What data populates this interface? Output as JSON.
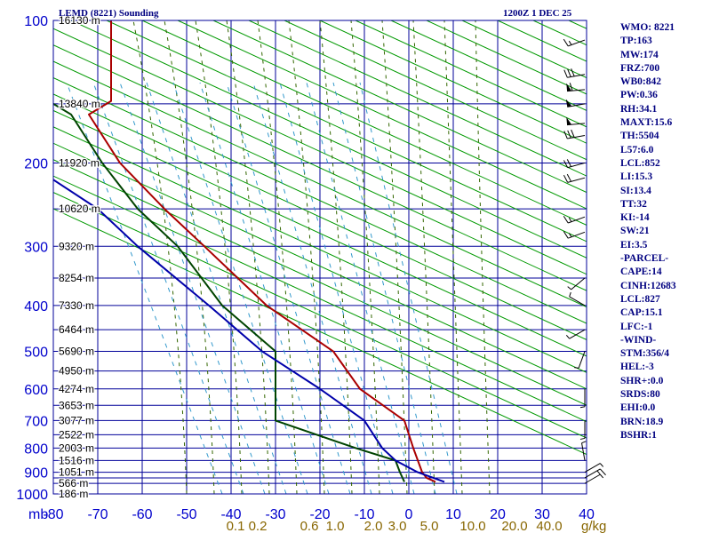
{
  "header": {
    "title": "LEMD (8221) Sounding",
    "date": "1200Z  1 DEC 25"
  },
  "indices": [
    "WMO: 8221",
    "TP:163",
    "MW:174",
    "FRZ:700",
    "WB0:842",
    "PW:0.36",
    "RH:34.1",
    "MAXT:15.6",
    "TH:5504",
    "L57:6.0",
    "LCL:852",
    "LI:15.3",
    "SI:13.4",
    "TT:32",
    "KI:-14",
    "SW:21",
    "EI:3.5",
    "-PARCEL-",
    "CAPE:14",
    "CINH:12683",
    "LCL:827",
    "CAP:15.1",
    "LFC:-1",
    "-WIND-",
    "STM:356/4",
    "HEL:-3",
    "SHR+:0.0",
    "SRDS:80",
    "EHI:0.0",
    "BRN:18.9",
    "BSHR:1"
  ],
  "colors": {
    "grid": "#000099",
    "axis_labels": "#0000cc",
    "temperature": "#aa0000",
    "dewpoint": "#004400",
    "parcel": "#0000aa",
    "dry_adiabats": "#009900",
    "moist_adiabats": "#336600",
    "mixing_ratio": "#3399cc",
    "mixing_labels": "#886600",
    "heights": "#000000",
    "indices_text": "#000080",
    "wind_barbs": "#000000"
  },
  "chart_data": {
    "type": "line",
    "diagram": "skew-T log-p",
    "pressure_unit": "mb",
    "x_tick_labels": [
      "-80",
      "-70",
      "-60",
      "-50",
      "-40",
      "-30",
      "-20",
      "-10",
      "0",
      "10",
      "20",
      "30",
      "40"
    ],
    "xlim": [
      -80,
      40
    ],
    "y_tick_labels": [
      "100",
      "200",
      "300",
      "400",
      "500",
      "600",
      "700",
      "800",
      "900",
      "1000"
    ],
    "ylim": [
      1000,
      100
    ],
    "pressure_levels": [
      100,
      150,
      200,
      250,
      300,
      350,
      400,
      450,
      500,
      550,
      600,
      650,
      700,
      750,
      800,
      850,
      900,
      925,
      950,
      1000
    ],
    "height_labels": [
      {
        "p": 100,
        "label": "16130 m"
      },
      {
        "p": 150,
        "label": "13840 m"
      },
      {
        "p": 200,
        "label": "11920 m"
      },
      {
        "p": 250,
        "label": "10620 m"
      },
      {
        "p": 300,
        "label": "9320 m"
      },
      {
        "p": 350,
        "label": "8254 m"
      },
      {
        "p": 400,
        "label": "7330 m"
      },
      {
        "p": 450,
        "label": "6464 m"
      },
      {
        "p": 500,
        "label": "5690 m"
      },
      {
        "p": 550,
        "label": "4950 m"
      },
      {
        "p": 600,
        "label": "4274 m"
      },
      {
        "p": 650,
        "label": "3653 m"
      },
      {
        "p": 700,
        "label": "3077 m"
      },
      {
        "p": 750,
        "label": "2522 m"
      },
      {
        "p": 800,
        "label": "2003 m"
      },
      {
        "p": 850,
        "label": "1516 m"
      },
      {
        "p": 900,
        "label": "1051 m"
      },
      {
        "p": 950,
        "label": "566 m"
      },
      {
        "p": 1000,
        "label": "186 m"
      }
    ],
    "mixing_ratio_labels": [
      "0.1",
      "0.2",
      "0.6",
      "1.0",
      "2.0",
      "3.0",
      "5.0",
      "10.0",
      "20.0",
      "40.0"
    ],
    "mixing_ratio_unit": "g/kg",
    "series": [
      {
        "name": "temperature",
        "points": [
          {
            "p": 100,
            "x": -67
          },
          {
            "p": 148,
            "x": -67
          },
          {
            "p": 158,
            "x": -72
          },
          {
            "p": 200,
            "x": -65
          },
          {
            "p": 250,
            "x": -55
          },
          {
            "p": 300,
            "x": -46
          },
          {
            "p": 400,
            "x": -32
          },
          {
            "p": 500,
            "x": -17
          },
          {
            "p": 600,
            "x": -11
          },
          {
            "p": 700,
            "x": -1
          },
          {
            "p": 800,
            "x": 1
          },
          {
            "p": 900,
            "x": 3
          },
          {
            "p": 925,
            "x": 4
          },
          {
            "p": 943,
            "x": 6
          }
        ]
      },
      {
        "name": "dewpoint",
        "points": [
          {
            "p": 150,
            "x": -80
          },
          {
            "p": 158,
            "x": -76
          },
          {
            "p": 200,
            "x": -69
          },
          {
            "p": 250,
            "x": -61
          },
          {
            "p": 300,
            "x": -52
          },
          {
            "p": 400,
            "x": -42
          },
          {
            "p": 500,
            "x": -30
          },
          {
            "p": 550,
            "x": -30
          },
          {
            "p": 600,
            "x": -30
          },
          {
            "p": 700,
            "x": -30
          },
          {
            "p": 800,
            "x": -12
          },
          {
            "p": 850,
            "x": -3
          },
          {
            "p": 900,
            "x": -2
          },
          {
            "p": 943,
            "x": -1
          }
        ]
      },
      {
        "name": "parcel",
        "points": [
          {
            "p": 217,
            "x": -80
          },
          {
            "p": 250,
            "x": -70
          },
          {
            "p": 300,
            "x": -61
          },
          {
            "p": 400,
            "x": -45
          },
          {
            "p": 500,
            "x": -33
          },
          {
            "p": 600,
            "x": -20
          },
          {
            "p": 700,
            "x": -10
          },
          {
            "p": 800,
            "x": -6
          },
          {
            "p": 850,
            "x": -3
          },
          {
            "p": 900,
            "x": 2
          },
          {
            "p": 943,
            "x": 8
          }
        ]
      }
    ],
    "wind_barbs": [
      {
        "p": 110,
        "dir": 250,
        "kt": 15
      },
      {
        "p": 130,
        "dir": 260,
        "kt": 30
      },
      {
        "p": 140,
        "dir": 265,
        "kt": 60
      },
      {
        "p": 150,
        "dir": 260,
        "kt": 50
      },
      {
        "p": 165,
        "dir": 265,
        "kt": 50
      },
      {
        "p": 175,
        "dir": 260,
        "kt": 30
      },
      {
        "p": 200,
        "dir": 255,
        "kt": 20
      },
      {
        "p": 215,
        "dir": 255,
        "kt": 20
      },
      {
        "p": 260,
        "dir": 250,
        "kt": 15
      },
      {
        "p": 280,
        "dir": 250,
        "kt": 15
      },
      {
        "p": 350,
        "dir": 230,
        "kt": 5
      },
      {
        "p": 400,
        "dir": 300,
        "kt": 5
      },
      {
        "p": 450,
        "dir": 240,
        "kt": 5
      },
      {
        "p": 500,
        "dir": 200,
        "kt": 5
      },
      {
        "p": 600,
        "dir": 180,
        "kt": 5
      },
      {
        "p": 700,
        "dir": 180,
        "kt": 5
      },
      {
        "p": 850,
        "dir": 350,
        "kt": 5
      },
      {
        "p": 900,
        "dir": 60,
        "kt": 5
      },
      {
        "p": 925,
        "dir": 60,
        "kt": 15
      },
      {
        "p": 950,
        "dir": 60,
        "kt": 5
      }
    ]
  }
}
